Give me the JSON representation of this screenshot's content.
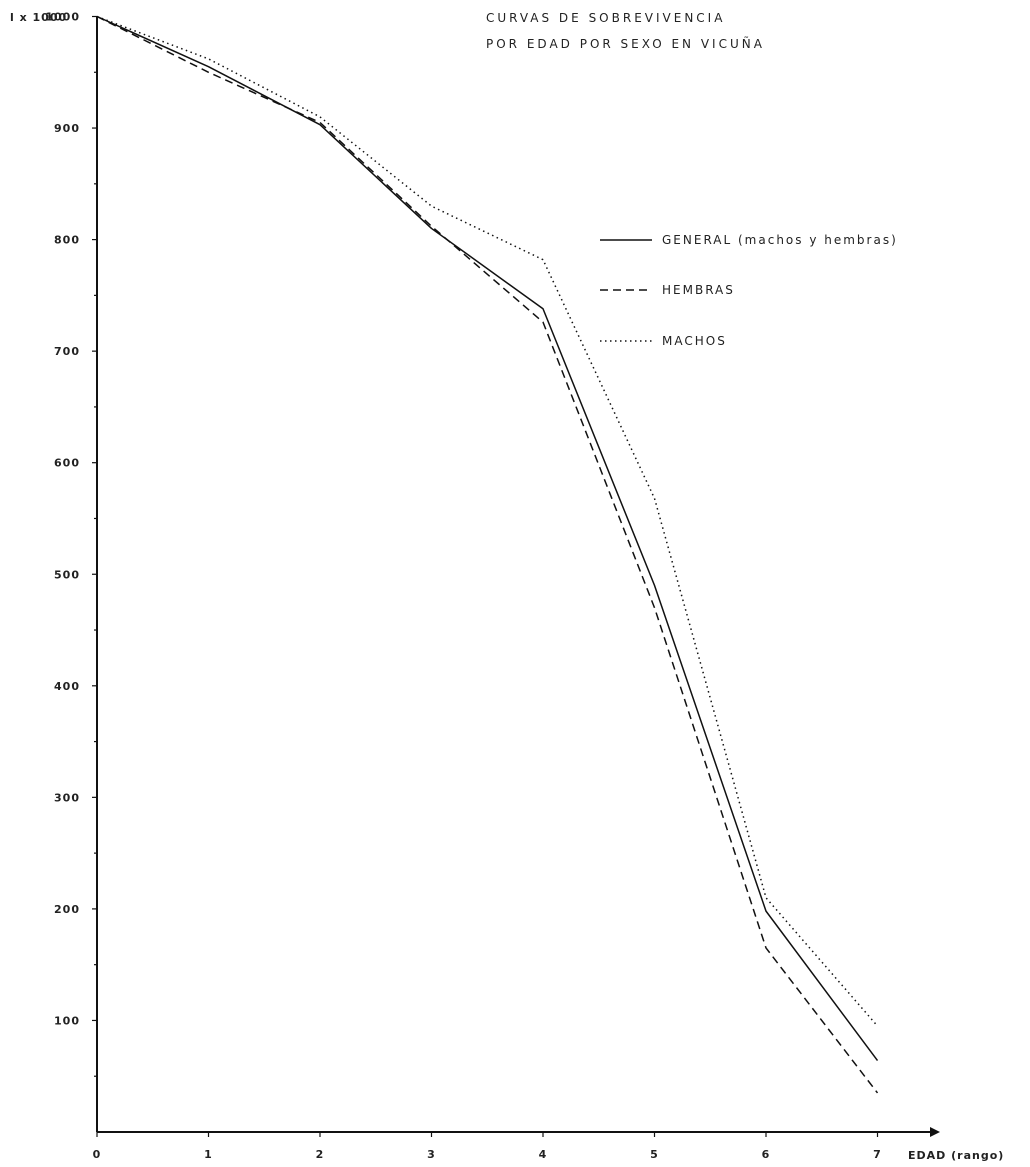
{
  "chart_data": {
    "type": "line",
    "title_lines": [
      "CURVAS DE SOBREVIVENCIA",
      "POR EDAD POR SEXO EN VICUÑA"
    ],
    "ylabel": "l x 1000",
    "xlabel": "EDAD (rango)",
    "x": [
      0,
      1,
      2,
      3,
      4,
      5,
      6,
      7
    ],
    "xlim": [
      0,
      7.4
    ],
    "ylim": [
      0,
      1000
    ],
    "x_ticks": [
      "0",
      "1",
      "2",
      "3",
      "4",
      "5",
      "6",
      "7"
    ],
    "y_ticks": [
      100,
      200,
      300,
      400,
      500,
      600,
      700,
      800,
      900
    ],
    "y_tick_labels": [
      "100",
      "200",
      "300",
      "400",
      "500",
      "600",
      "700",
      "800",
      "900"
    ],
    "y_top_label": "1000",
    "grid": false,
    "legend_position": "upper-right",
    "series": [
      {
        "name": "GENERAL (machos y hembras)",
        "style": "solid",
        "values": [
          1000,
          955,
          903,
          810,
          738,
          490,
          198,
          64
        ]
      },
      {
        "name": "HEMBRAS",
        "style": "dashed",
        "values": [
          1000,
          950,
          905,
          812,
          726,
          470,
          165,
          35
        ]
      },
      {
        "name": "MACHOS",
        "style": "dotted",
        "values": [
          1000,
          962,
          910,
          830,
          782,
          568,
          210,
          95
        ]
      }
    ]
  }
}
